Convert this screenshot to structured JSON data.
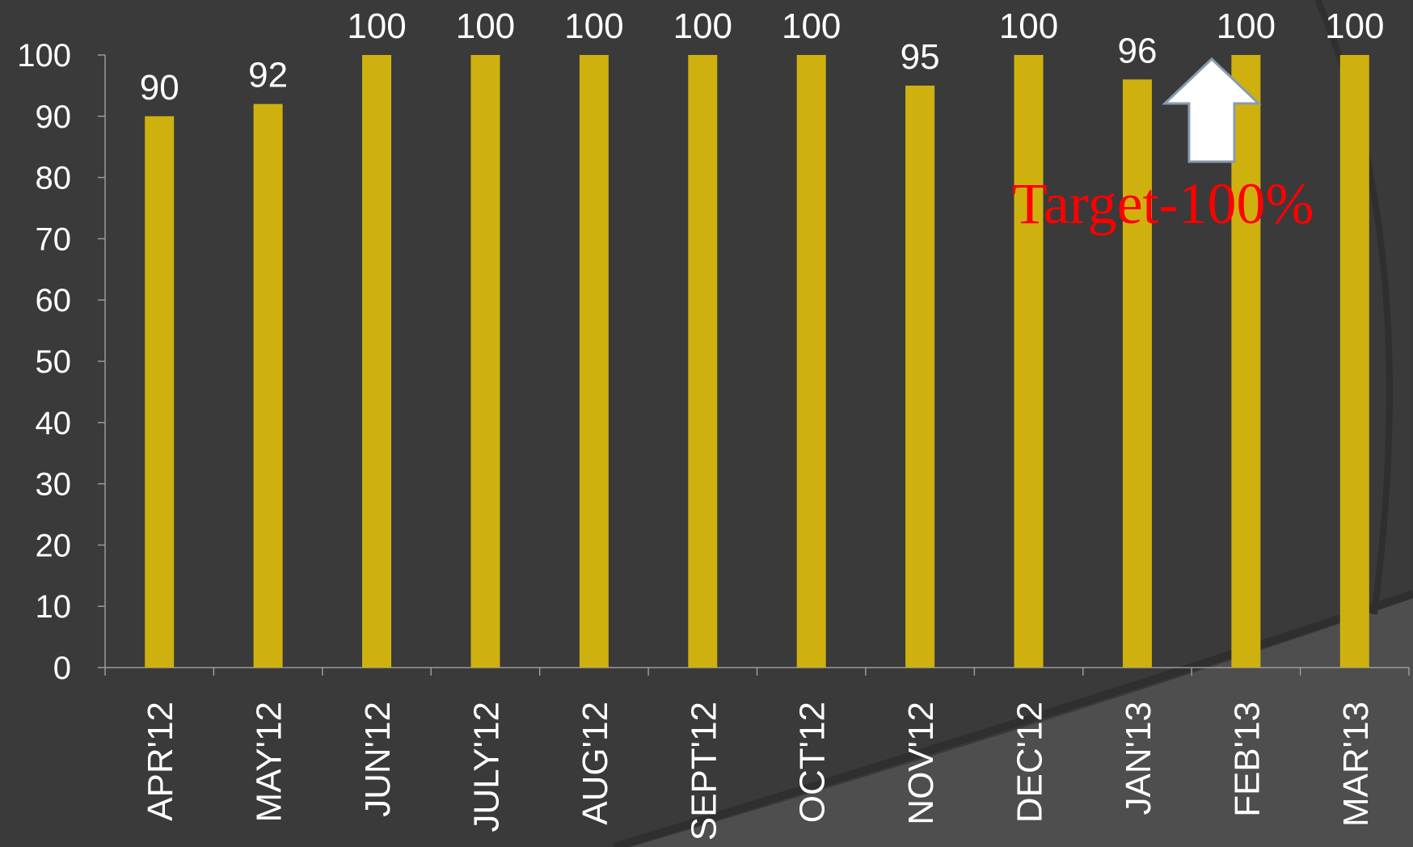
{
  "chart_data": {
    "type": "bar",
    "categories": [
      "APR'12",
      "MAY'12",
      "JUN'12",
      "JULY'12",
      "AUG'12",
      "SEPT'12",
      "OCT'12",
      "NOV'12",
      "DEC'12",
      "JAN'13",
      "FEB'13",
      "MAR'13"
    ],
    "values": [
      90,
      92,
      100,
      100,
      100,
      100,
      100,
      95,
      100,
      96,
      100,
      100
    ],
    "ylim": [
      0,
      100
    ],
    "yticks": [
      0,
      10,
      20,
      30,
      40,
      50,
      60,
      70,
      80,
      90,
      100
    ],
    "grid": false,
    "legend": "none",
    "annotation": "Target-100%"
  },
  "colors": {
    "background": "#3a3a3a",
    "bar": "#ceb10f",
    "axis": "#9a9a9a",
    "text": "#ffffff",
    "annotation": "#ff0000",
    "arrow_fill": "#ffffff",
    "arrow_stroke": "#8a9aae",
    "swoosh": "#2f2f2f",
    "swoosh_light": "#4e4e4e"
  },
  "icons": {
    "target_arrow": "up-arrow-icon"
  }
}
